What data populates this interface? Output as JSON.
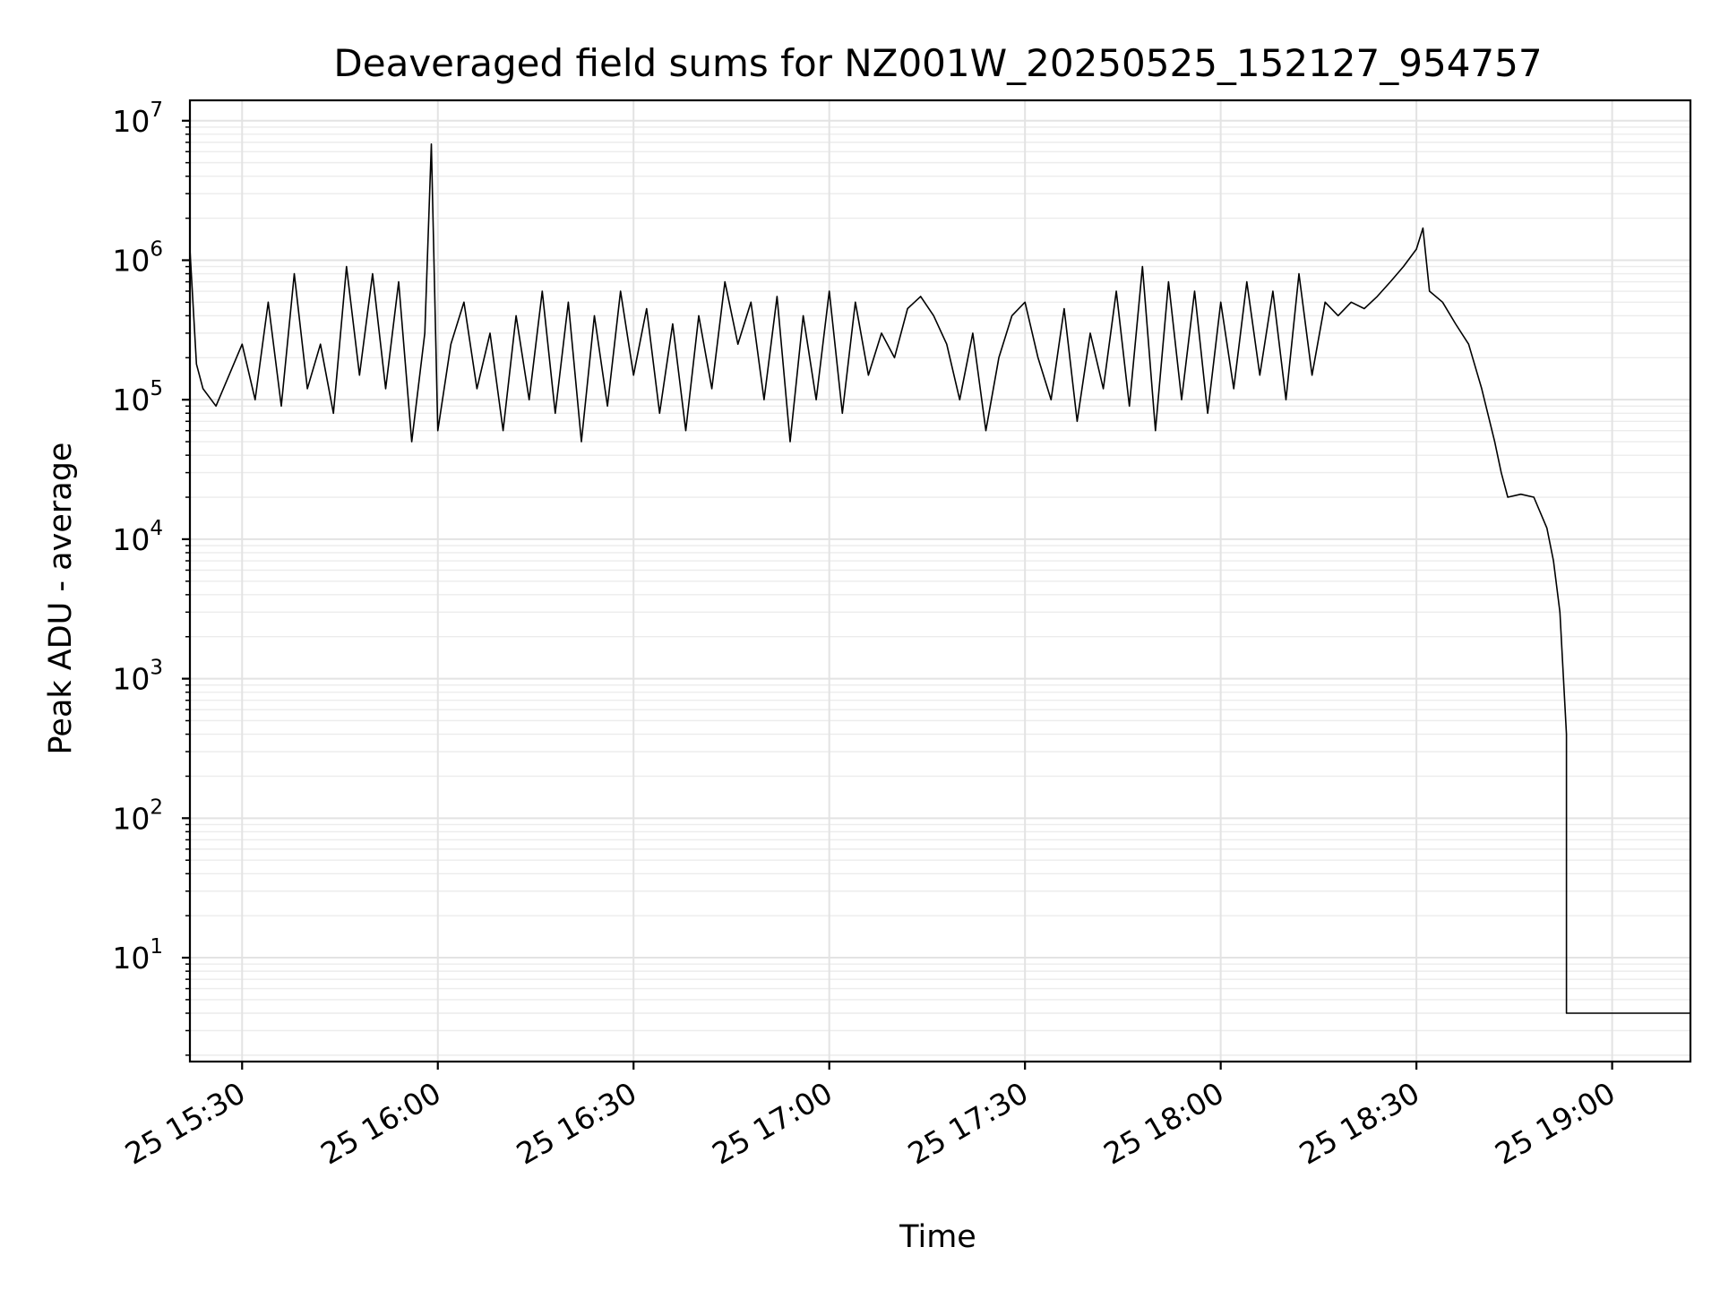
{
  "chart_data": {
    "type": "line",
    "title": "Deaveraged field sums for NZ001W_20250525_152127_954757",
    "xlabel": "Time",
    "ylabel": "Peak ADU - average",
    "yscale": "log",
    "xlim": [
      "2025-05-25 15:22",
      "2025-05-25 19:12"
    ],
    "ylim": [
      1.8,
      14000000
    ],
    "grid": true,
    "line_color": "#000000",
    "x_ticks": [
      {
        "value": "2025-05-25 15:30",
        "label": "25 15:30"
      },
      {
        "value": "2025-05-25 16:00",
        "label": "25 16:00"
      },
      {
        "value": "2025-05-25 16:30",
        "label": "25 16:30"
      },
      {
        "value": "2025-05-25 17:00",
        "label": "25 17:00"
      },
      {
        "value": "2025-05-25 17:30",
        "label": "25 17:30"
      },
      {
        "value": "2025-05-25 18:00",
        "label": "25 18:00"
      },
      {
        "value": "2025-05-25 18:30",
        "label": "25 18:30"
      },
      {
        "value": "2025-05-25 19:00",
        "label": "25 19:00"
      }
    ],
    "y_ticks": [
      {
        "value": 10,
        "base": "10",
        "exp": "1"
      },
      {
        "value": 100,
        "base": "10",
        "exp": "2"
      },
      {
        "value": 1000,
        "base": "10",
        "exp": "3"
      },
      {
        "value": 10000,
        "base": "10",
        "exp": "4"
      },
      {
        "value": 100000,
        "base": "10",
        "exp": "5"
      },
      {
        "value": 1000000,
        "base": "10",
        "exp": "6"
      },
      {
        "value": 10000000,
        "base": "10",
        "exp": "7"
      }
    ],
    "series": [
      {
        "values": [
          [
            "2025-05-25 15:22",
            1200000
          ],
          [
            "2025-05-25 15:23",
            180000
          ],
          [
            "2025-05-25 15:24",
            120000
          ],
          [
            "2025-05-25 15:26",
            90000
          ],
          [
            "2025-05-25 15:28",
            150000
          ],
          [
            "2025-05-25 15:30",
            250000
          ],
          [
            "2025-05-25 15:32",
            100000
          ],
          [
            "2025-05-25 15:34",
            500000
          ],
          [
            "2025-05-25 15:36",
            90000
          ],
          [
            "2025-05-25 15:38",
            800000
          ],
          [
            "2025-05-25 15:40",
            120000
          ],
          [
            "2025-05-25 15:42",
            250000
          ],
          [
            "2025-05-25 15:44",
            80000
          ],
          [
            "2025-05-25 15:46",
            900000
          ],
          [
            "2025-05-25 15:48",
            150000
          ],
          [
            "2025-05-25 15:50",
            800000
          ],
          [
            "2025-05-25 15:52",
            120000
          ],
          [
            "2025-05-25 15:54",
            700000
          ],
          [
            "2025-05-25 15:56",
            50000
          ],
          [
            "2025-05-25 15:58",
            300000
          ],
          [
            "2025-05-25 15:59",
            6800000
          ],
          [
            "2025-05-25 16:00",
            60000
          ],
          [
            "2025-05-25 16:02",
            250000
          ],
          [
            "2025-05-25 16:04",
            500000
          ],
          [
            "2025-05-25 16:06",
            120000
          ],
          [
            "2025-05-25 16:08",
            300000
          ],
          [
            "2025-05-25 16:10",
            60000
          ],
          [
            "2025-05-25 16:12",
            400000
          ],
          [
            "2025-05-25 16:14",
            100000
          ],
          [
            "2025-05-25 16:16",
            600000
          ],
          [
            "2025-05-25 16:18",
            80000
          ],
          [
            "2025-05-25 16:20",
            500000
          ],
          [
            "2025-05-25 16:22",
            50000
          ],
          [
            "2025-05-25 16:24",
            400000
          ],
          [
            "2025-05-25 16:26",
            90000
          ],
          [
            "2025-05-25 16:28",
            600000
          ],
          [
            "2025-05-25 16:30",
            150000
          ],
          [
            "2025-05-25 16:32",
            450000
          ],
          [
            "2025-05-25 16:34",
            80000
          ],
          [
            "2025-05-25 16:36",
            350000
          ],
          [
            "2025-05-25 16:38",
            60000
          ],
          [
            "2025-05-25 16:40",
            400000
          ],
          [
            "2025-05-25 16:42",
            120000
          ],
          [
            "2025-05-25 16:44",
            700000
          ],
          [
            "2025-05-25 16:46",
            250000
          ],
          [
            "2025-05-25 16:48",
            500000
          ],
          [
            "2025-05-25 16:50",
            100000
          ],
          [
            "2025-05-25 16:52",
            550000
          ],
          [
            "2025-05-25 16:54",
            50000
          ],
          [
            "2025-05-25 16:56",
            400000
          ],
          [
            "2025-05-25 16:58",
            100000
          ],
          [
            "2025-05-25 17:00",
            600000
          ],
          [
            "2025-05-25 17:02",
            80000
          ],
          [
            "2025-05-25 17:04",
            500000
          ],
          [
            "2025-05-25 17:06",
            150000
          ],
          [
            "2025-05-25 17:08",
            300000
          ],
          [
            "2025-05-25 17:10",
            200000
          ],
          [
            "2025-05-25 17:12",
            450000
          ],
          [
            "2025-05-25 17:14",
            550000
          ],
          [
            "2025-05-25 17:16",
            400000
          ],
          [
            "2025-05-25 17:18",
            250000
          ],
          [
            "2025-05-25 17:20",
            100000
          ],
          [
            "2025-05-25 17:22",
            300000
          ],
          [
            "2025-05-25 17:24",
            60000
          ],
          [
            "2025-05-25 17:26",
            200000
          ],
          [
            "2025-05-25 17:28",
            400000
          ],
          [
            "2025-05-25 17:30",
            500000
          ],
          [
            "2025-05-25 17:32",
            200000
          ],
          [
            "2025-05-25 17:34",
            100000
          ],
          [
            "2025-05-25 17:36",
            450000
          ],
          [
            "2025-05-25 17:38",
            70000
          ],
          [
            "2025-05-25 17:40",
            300000
          ],
          [
            "2025-05-25 17:42",
            120000
          ],
          [
            "2025-05-25 17:44",
            600000
          ],
          [
            "2025-05-25 17:46",
            90000
          ],
          [
            "2025-05-25 17:48",
            900000
          ],
          [
            "2025-05-25 17:50",
            60000
          ],
          [
            "2025-05-25 17:52",
            700000
          ],
          [
            "2025-05-25 17:54",
            100000
          ],
          [
            "2025-05-25 17:56",
            600000
          ],
          [
            "2025-05-25 17:58",
            80000
          ],
          [
            "2025-05-25 18:00",
            500000
          ],
          [
            "2025-05-25 18:02",
            120000
          ],
          [
            "2025-05-25 18:04",
            700000
          ],
          [
            "2025-05-25 18:06",
            150000
          ],
          [
            "2025-05-25 18:08",
            600000
          ],
          [
            "2025-05-25 18:10",
            100000
          ],
          [
            "2025-05-25 18:12",
            800000
          ],
          [
            "2025-05-25 18:14",
            150000
          ],
          [
            "2025-05-25 18:16",
            500000
          ],
          [
            "2025-05-25 18:18",
            400000
          ],
          [
            "2025-05-25 18:20",
            500000
          ],
          [
            "2025-05-25 18:22",
            450000
          ],
          [
            "2025-05-25 18:24",
            550000
          ],
          [
            "2025-05-25 18:26",
            700000
          ],
          [
            "2025-05-25 18:28",
            900000
          ],
          [
            "2025-05-25 18:30",
            1200000
          ],
          [
            "2025-05-25 18:31",
            1700000
          ],
          [
            "2025-05-25 18:32",
            600000
          ],
          [
            "2025-05-25 18:34",
            500000
          ],
          [
            "2025-05-25 18:36",
            350000
          ],
          [
            "2025-05-25 18:38",
            250000
          ],
          [
            "2025-05-25 18:40",
            120000
          ],
          [
            "2025-05-25 18:42",
            50000
          ],
          [
            "2025-05-25 18:43",
            30000
          ],
          [
            "2025-05-25 18:44",
            20000
          ],
          [
            "2025-05-25 18:46",
            21000
          ],
          [
            "2025-05-25 18:48",
            20000
          ],
          [
            "2025-05-25 18:50",
            12000
          ],
          [
            "2025-05-25 18:51",
            7000
          ],
          [
            "2025-05-25 18:52",
            3000
          ],
          [
            "2025-05-25 18:53",
            400
          ],
          [
            "2025-05-25 18:53",
            4
          ],
          [
            "2025-05-25 19:12",
            4
          ]
        ]
      }
    ]
  }
}
